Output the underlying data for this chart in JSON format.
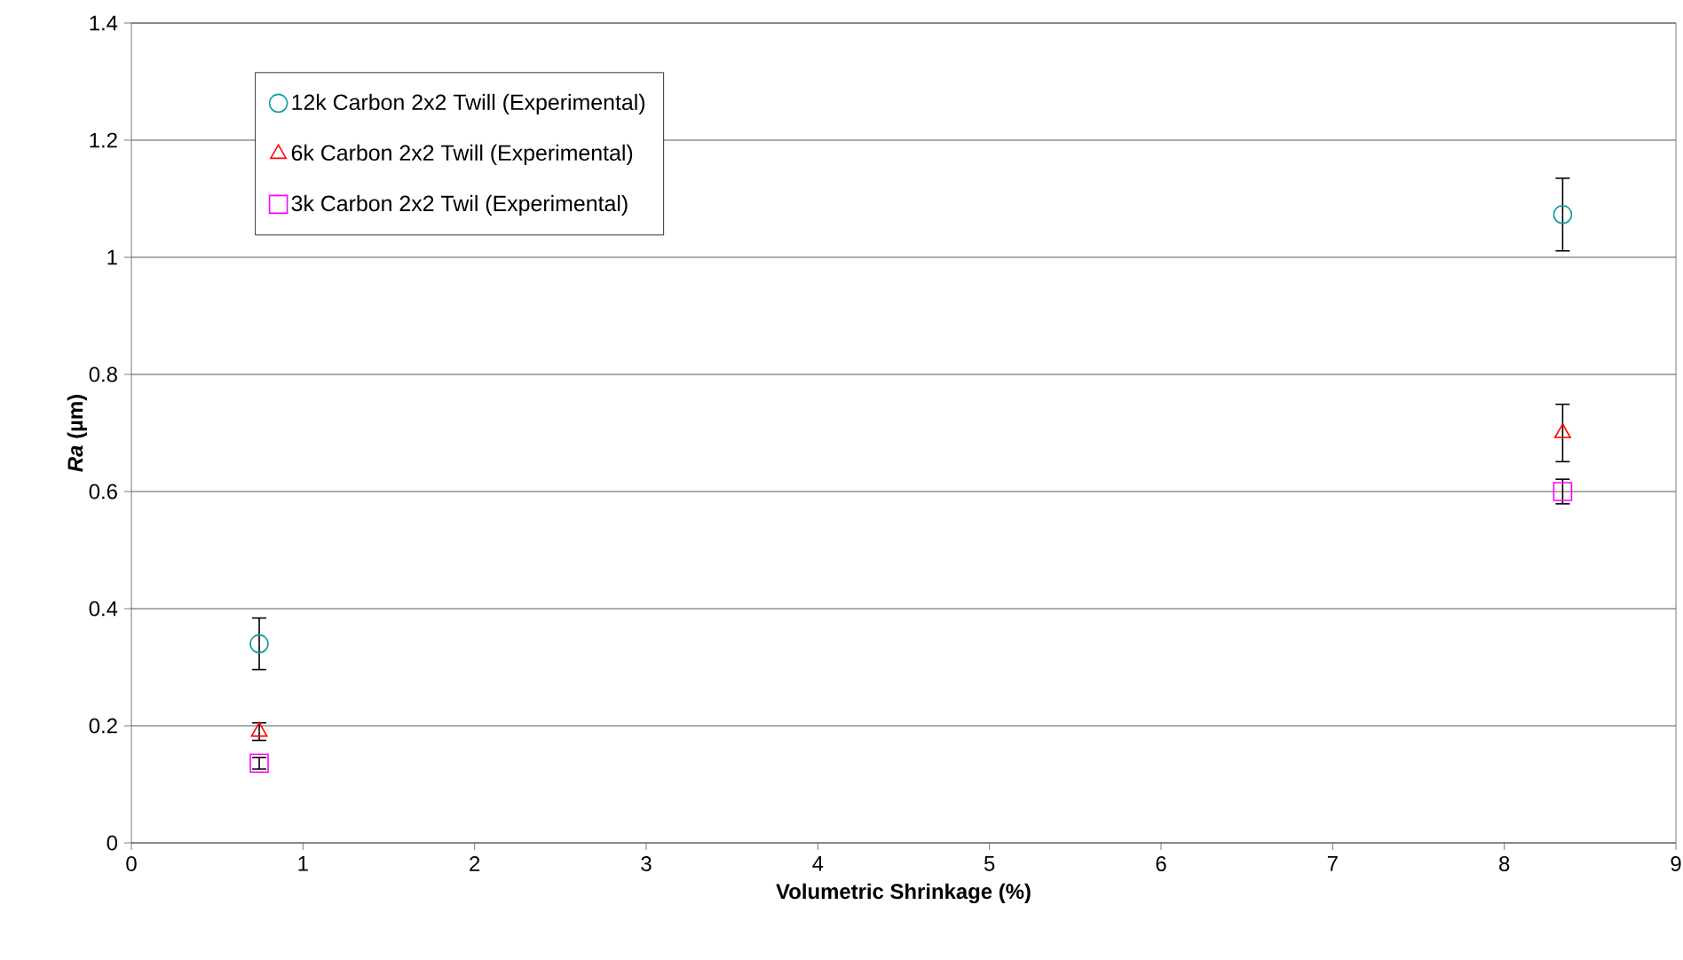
{
  "chart_data": {
    "type": "scatter",
    "xlabel": "Volumetric Shrinkage (%)",
    "ylabel": "*Ra*  (µm)",
    "x": [
      0.745,
      8.34
    ],
    "series": [
      {
        "name": "12k Carbon 2x2 Twill (Experimental)",
        "color": "#169c9c",
        "marker": "circle",
        "values": [
          0.34,
          1.073
        ],
        "errors": [
          0.044,
          0.062
        ]
      },
      {
        "name": "6k Carbon 2x2 Twill (Experimental)",
        "color": "#ff0000",
        "marker": "triangle",
        "values": [
          0.19,
          0.7
        ],
        "errors": [
          0.015,
          0.049
        ]
      },
      {
        "name": "3k Carbon 2x2 Twil (Experimental)",
        "color": "#ff00ff",
        "marker": "square",
        "values": [
          0.136,
          0.6
        ],
        "errors": [
          0.01,
          0.021
        ]
      }
    ],
    "xlim": [
      0,
      9
    ],
    "ylim": [
      0,
      1.4
    ],
    "xticks": [
      0,
      1,
      2,
      3,
      4,
      5,
      6,
      7,
      8,
      9
    ],
    "yticks": [
      0,
      0.2,
      0.4,
      0.6,
      0.8,
      1,
      1.2,
      1.4
    ],
    "grid": "y",
    "legend": "top left"
  }
}
